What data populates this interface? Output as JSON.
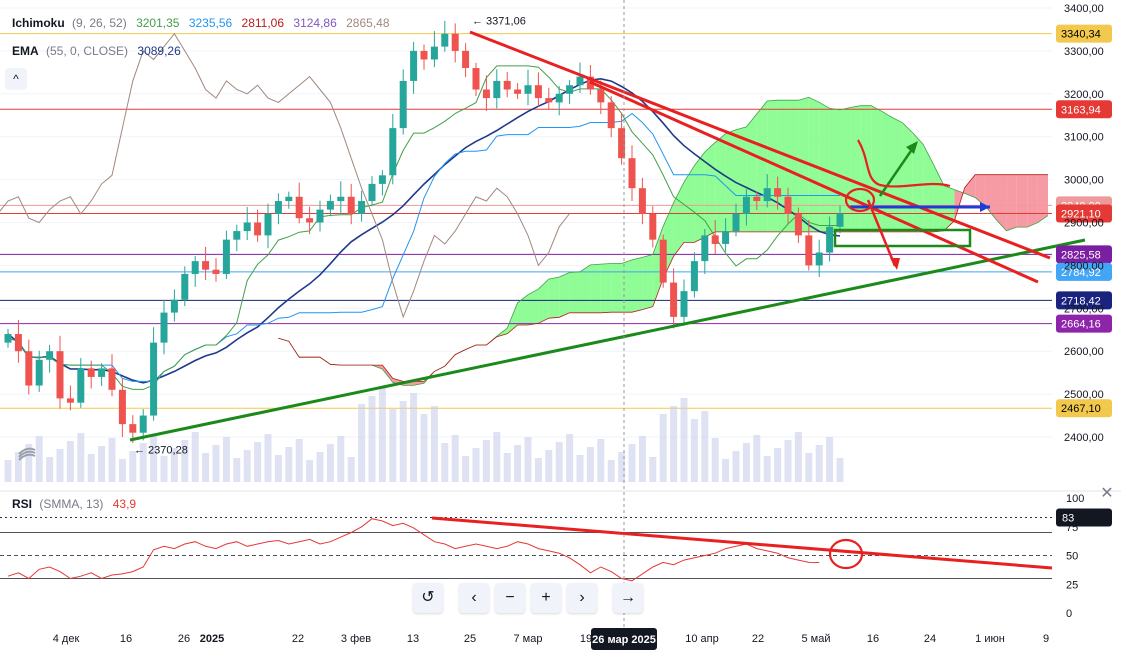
{
  "legend": {
    "ichimoku": {
      "name": "Ichimoku",
      "params": "(9, 26, 52)",
      "values": [
        "3201,35",
        "3235,56",
        "2811,06",
        "3124,86",
        "2865,48"
      ],
      "colors": [
        "#43a047",
        "#2196f3",
        "#b71c1c",
        "#7e57c2",
        "#a1887f"
      ]
    },
    "ema": {
      "name": "EMA",
      "params": "(55, 0, CLOSE)",
      "value": "3089,26",
      "color": "#1e3a8a"
    },
    "rsi": {
      "name": "RSI",
      "params": "(SMMA, 13)",
      "value": "43,9",
      "color": "#e53935"
    }
  },
  "buttons": {
    "collapse": "^",
    "close": "✕",
    "nav": [
      "↺",
      "‹",
      "−",
      "+",
      "›",
      "→"
    ]
  },
  "chart_data": {
    "type": "candlestick",
    "y_axis": {
      "ticks": [
        2400,
        2500,
        2600,
        2700,
        2800,
        2900,
        3000,
        3100,
        3200,
        3300,
        3400
      ],
      "tick_labels": [
        "2400,00",
        "2500,00",
        "2600,00",
        "2700,00",
        "2800,00",
        "2900,00",
        "3000,00",
        "3100,00",
        "3200,00",
        "3300,00",
        "3400,00"
      ]
    },
    "x_axis": {
      "labels": [
        "4 дек",
        "16",
        "26",
        "2025",
        "22",
        "3 фев",
        "13",
        "25",
        "7 мар",
        "19",
        "10 апр",
        "22",
        "5 май",
        "16",
        "24",
        "1 июн",
        "9"
      ],
      "crosshair_label": "26 мар 2025"
    },
    "price_labels": [
      {
        "value": 3340.34,
        "text": "3340,34",
        "color": "#f2c94c",
        "text_color": "#000000"
      },
      {
        "value": 3163.94,
        "text": "3163,94",
        "color": "#e53935",
        "text_color": "#ffffff"
      },
      {
        "value": 2940.0,
        "text": "2940,00",
        "color": "#ef9a9a",
        "text_color": "#ffffff"
      },
      {
        "value": 2921.1,
        "text": "2921,10",
        "color": "#e53935",
        "text_color": "#ffffff"
      },
      {
        "value": 2825.58,
        "text": "2825,58",
        "color": "#7b1fa2",
        "text_color": "#ffffff"
      },
      {
        "value": 2784.92,
        "text": "2784,92",
        "color": "#42a5f5",
        "text_color": "#ffffff"
      },
      {
        "value": 2718.42,
        "text": "2718,42",
        "color": "#1a237e",
        "text_color": "#ffffff"
      },
      {
        "value": 2664.16,
        "text": "2664,16",
        "color": "#8e24aa",
        "text_color": "#ffffff"
      },
      {
        "value": 2467.1,
        "text": "2467,10",
        "color": "#f2c94c",
        "text_color": "#000000"
      }
    ],
    "annotations": [
      {
        "text": "← 3371,06",
        "price": 3371.06
      },
      {
        "text": "← 2370,28",
        "price": 2370.28
      }
    ],
    "closes": [
      2640,
      2600,
      2520,
      2580,
      2600,
      2490,
      2480,
      2560,
      2540,
      2560,
      2510,
      2430,
      2410,
      2450,
      2620,
      2690,
      2720,
      2780,
      2810,
      2790,
      2780,
      2860,
      2880,
      2900,
      2870,
      2920,
      2950,
      2960,
      2910,
      2900,
      2930,
      2950,
      2960,
      2920,
      2950,
      2990,
      3010,
      3120,
      3230,
      3300,
      3280,
      3310,
      3340,
      3300,
      3260,
      3210,
      3190,
      3230,
      3210,
      3200,
      3220,
      3190,
      3180,
      3200,
      3220,
      3240,
      3210,
      3180,
      3120,
      3050,
      2980,
      2920,
      2860,
      2760,
      2680,
      2740,
      2810,
      2870,
      2850,
      2880,
      2920,
      2960,
      2950,
      2980,
      2960,
      2920,
      2870,
      2800,
      2830,
      2890,
      2921
    ],
    "rsi": {
      "levels": [
        30,
        50,
        70
      ],
      "axis_ticks": [
        0,
        25,
        50,
        75,
        100
      ],
      "value_label": "83",
      "values": [
        32,
        35,
        30,
        38,
        40,
        36,
        30,
        32,
        35,
        30,
        33,
        34,
        36,
        40,
        55,
        58,
        56,
        60,
        62,
        58,
        56,
        60,
        62,
        58,
        60,
        62,
        63,
        60,
        62,
        64,
        60,
        62,
        66,
        70,
        75,
        82,
        80,
        76,
        78,
        74,
        68,
        62,
        60,
        56,
        58,
        60,
        58,
        56,
        58,
        62,
        60,
        56,
        54,
        52,
        48,
        42,
        35,
        40,
        36,
        30,
        28,
        34,
        40,
        44,
        42,
        46,
        48,
        50,
        52,
        56,
        58,
        60,
        56,
        54,
        52,
        48,
        46,
        44,
        43.9
      ]
    }
  }
}
